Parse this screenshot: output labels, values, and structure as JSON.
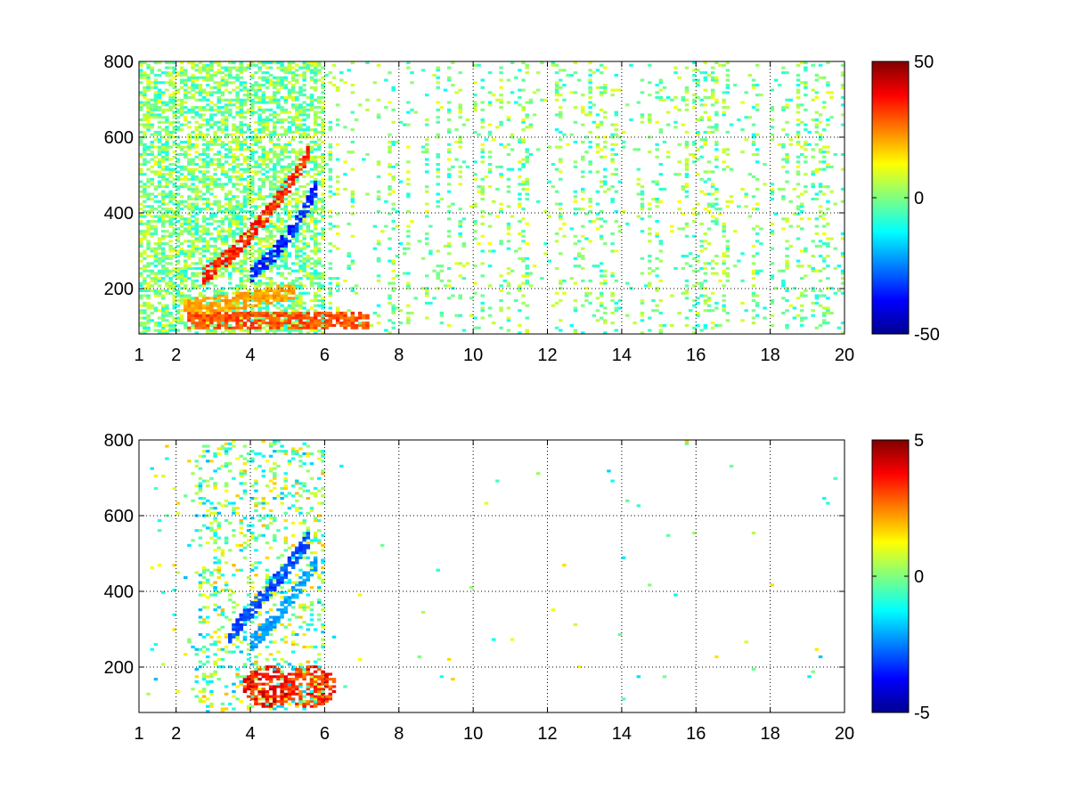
{
  "chart_data": [
    {
      "type": "heatmap",
      "title": "",
      "xlabel": "",
      "ylabel": "",
      "xlim": [
        1,
        20
      ],
      "ylim": [
        80,
        800
      ],
      "xticks": [
        1,
        2,
        4,
        6,
        8,
        10,
        12,
        14,
        16,
        18,
        20
      ],
      "yticks": [
        200,
        400,
        600,
        800
      ],
      "grid": true,
      "colormap": "jet",
      "clim": [
        -50,
        50
      ],
      "colorbar_ticks": [
        -50,
        0,
        50
      ],
      "features": [
        {
          "kind": "band",
          "x": [
            2.7,
            3.5,
            4.3,
            5.0,
            5.6
          ],
          "y": [
            230,
            290,
            380,
            470,
            560
          ],
          "value": 40
        },
        {
          "kind": "band",
          "x": [
            4.0,
            4.7,
            5.3,
            5.8
          ],
          "y": [
            230,
            300,
            380,
            470
          ],
          "value": -40
        },
        {
          "kind": "band",
          "x": [
            2.3,
            3.5,
            4.8,
            6.0,
            7.2
          ],
          "y": [
            115,
            115,
            115,
            115,
            115
          ],
          "value": 35
        },
        {
          "kind": "band",
          "x": [
            2.2,
            3.2,
            4.2,
            5.2
          ],
          "y": [
            150,
            160,
            175,
            195
          ],
          "value": 25
        }
      ],
      "scatter_density": {
        "dense_region_x": [
          1,
          6
        ],
        "value_range_sparse": [
          -12,
          12
        ]
      }
    },
    {
      "type": "heatmap",
      "title": "",
      "xlabel": "",
      "ylabel": "",
      "xlim": [
        1,
        20
      ],
      "ylim": [
        80,
        800
      ],
      "xticks": [
        1,
        2,
        4,
        6,
        8,
        10,
        12,
        14,
        16,
        18,
        20
      ],
      "yticks": [
        200,
        400,
        600,
        800
      ],
      "grid": true,
      "colormap": "jet",
      "clim": [
        -5,
        5
      ],
      "colorbar_ticks": [
        -5,
        0,
        5
      ],
      "features": [
        {
          "kind": "band",
          "x": [
            3.4,
            4.2,
            4.9,
            5.6
          ],
          "y": [
            280,
            370,
            450,
            540
          ],
          "value": -3.5
        },
        {
          "kind": "band",
          "x": [
            4.0,
            4.7,
            5.3,
            5.8
          ],
          "y": [
            260,
            330,
            410,
            480
          ],
          "value": -2.5
        },
        {
          "kind": "blob",
          "x": 4.5,
          "y": 150,
          "value": 4.5
        },
        {
          "kind": "blob",
          "x": 5.6,
          "y": 150,
          "value": 4.0
        }
      ],
      "scatter_density": {
        "dense_region_x": [
          2.5,
          6
        ],
        "value_range_sparse": [
          -2,
          2
        ]
      }
    }
  ]
}
